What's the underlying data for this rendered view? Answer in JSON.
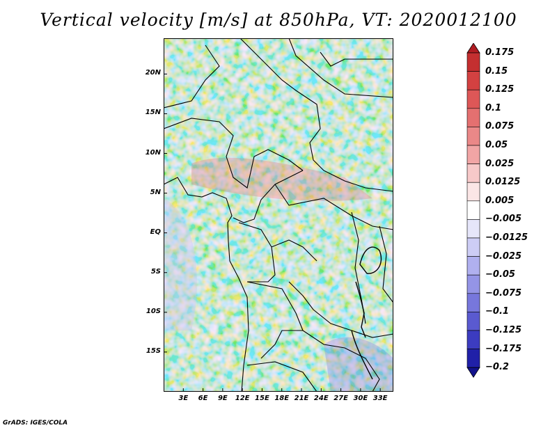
{
  "title": "Vertical velocity [m/s] at 850hPa, VT: 2020012100",
  "footer": "GrADS: IGES/COLA",
  "map": {
    "lat_labels": [
      "20N",
      "15N",
      "10N",
      "5N",
      "EQ",
      "5S",
      "10S",
      "15S"
    ],
    "lat_values": [
      20,
      15,
      10,
      5,
      0,
      -5,
      -10,
      -15
    ],
    "lon_labels": [
      "3E",
      "6E",
      "9E",
      "12E",
      "15E",
      "18E",
      "21E",
      "24E",
      "27E",
      "30E",
      "33E"
    ],
    "lon_values": [
      3,
      6,
      9,
      12,
      15,
      18,
      21,
      24,
      27,
      30,
      33
    ],
    "lat_range": [
      -20,
      24.5
    ],
    "lon_range": [
      0,
      35
    ],
    "field": "vertical velocity",
    "level": "850hPa",
    "valid_time": "2020012100",
    "units": "m/s"
  },
  "colorbar": {
    "levels": [
      "0.175",
      "0.15",
      "0.125",
      "0.1",
      "0.075",
      "0.05",
      "0.025",
      "0.0125",
      "0.005",
      "-0.005",
      "-0.0125",
      "-0.025",
      "-0.05",
      "-0.075",
      "-0.1",
      "-0.125",
      "-0.175",
      "-0.2"
    ],
    "colors": [
      "#b01c22",
      "#c42f30",
      "#d34141",
      "#dd5757",
      "#e47070",
      "#ea8888",
      "#f1a5a5",
      "#f7c9c9",
      "#fbe6e6",
      "#ffffff",
      "#e6e6fa",
      "#cdcdf5",
      "#b0b0ef",
      "#9494e6",
      "#7777dc",
      "#5a5ad0",
      "#3c3cc0",
      "#2020a8",
      "#12128c"
    ]
  }
}
